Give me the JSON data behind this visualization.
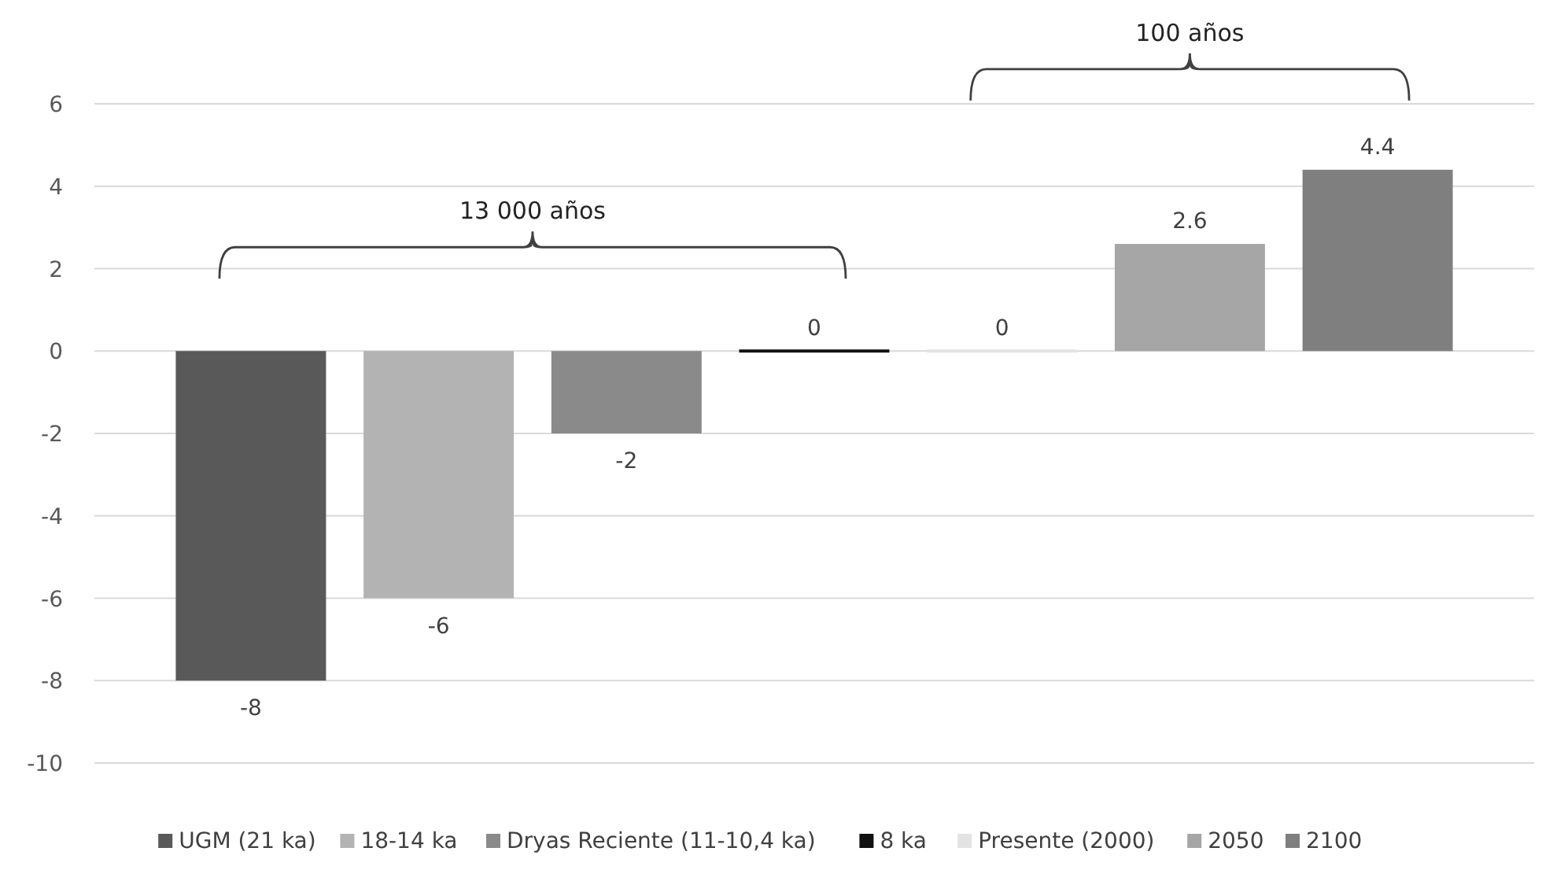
{
  "chart_data": {
    "type": "bar",
    "categories": [
      null
    ],
    "series": [
      {
        "name": "UGM (21 ka)",
        "color": "#595959",
        "values": [
          -8
        ]
      },
      {
        "name": "18-14 ka",
        "color": "#b3b3b3",
        "values": [
          -6
        ]
      },
      {
        "name": "Dryas Reciente (11-10,4 ka)",
        "color": "#8a8a8a",
        "values": [
          -2
        ]
      },
      {
        "name": "8 ka",
        "color": "#111111",
        "values": [
          0
        ]
      },
      {
        "name": "Presente (2000)",
        "color": "#e3e3e3",
        "values": [
          0
        ]
      },
      {
        "name": "2050",
        "color": "#a6a6a6",
        "values": [
          2.6
        ]
      },
      {
        "name": "2100",
        "color": "#7f7f7f",
        "values": [
          4.4
        ]
      }
    ],
    "ylim": [
      -10,
      6
    ],
    "yticks": [
      -10,
      -8,
      -6,
      -4,
      -2,
      0,
      2,
      4,
      6
    ],
    "grid": "y",
    "legend": "bottom",
    "data_labels": true,
    "annotations": [
      "13 000 años",
      "100 años"
    ]
  }
}
